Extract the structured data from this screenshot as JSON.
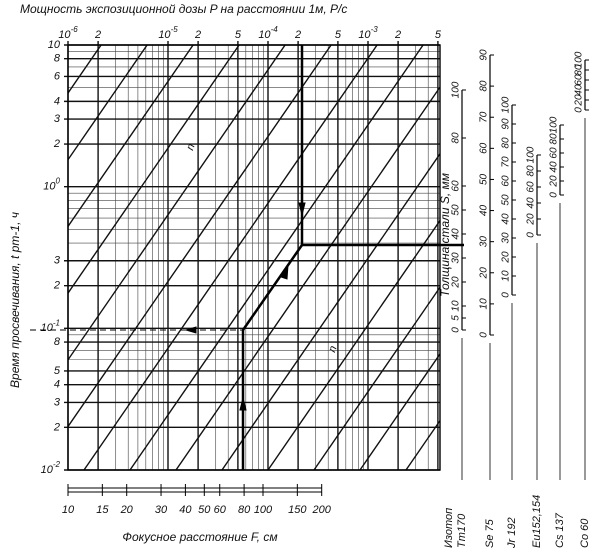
{
  "title": "Мощность экспозиционной дозы P на расстоянии 1м, Р/с",
  "left_axis_label": "Время просвечивания, t рт-1, ч",
  "bottom_axis_label": "Фокусное расстояние F, см",
  "steel_label": "Толщина стали S, мм",
  "isotope_header": "Изотоп",
  "line_labels": [
    "n",
    "n"
  ],
  "top_ticks": [
    {
      "value": 1e-06,
      "label": "10",
      "exp": "-6"
    },
    {
      "value": 2e-06,
      "label": "2"
    },
    {
      "value": 1e-05,
      "label": "10",
      "exp": "-5"
    },
    {
      "value": 2e-05,
      "label": "2"
    },
    {
      "value": 5e-05,
      "label": "5"
    },
    {
      "value": 0.0001,
      "label": "10",
      "exp": "-4"
    },
    {
      "value": 0.0002,
      "label": "2"
    },
    {
      "value": 0.0005,
      "label": "5"
    },
    {
      "value": 0.001,
      "label": "10",
      "exp": "-3"
    },
    {
      "value": 0.002,
      "label": "2"
    },
    {
      "value": 0.005,
      "label": "5"
    }
  ],
  "left_ticks": [
    10,
    8,
    6,
    4,
    3,
    2,
    {
      "value": 1,
      "label": "10",
      "exp": "0"
    },
    {
      "value": 0.3,
      "label": "3"
    },
    {
      "value": 0.2,
      "label": "2"
    },
    {
      "value": 0.1,
      "label": "10",
      "exp": "-1"
    },
    {
      "value": 0.08,
      "label": "8"
    },
    {
      "value": 0.05,
      "label": "5"
    },
    {
      "value": 0.04,
      "label": "4"
    },
    {
      "value": 0.03,
      "label": "3"
    },
    {
      "value": 0.02,
      "label": "2"
    },
    {
      "value": 0.01,
      "label": "10",
      "exp": "-2"
    }
  ],
  "bottom_ticks": [
    10,
    15,
    20,
    30,
    40,
    50,
    60,
    80,
    100,
    150,
    200
  ],
  "steel_scales": [
    {
      "isotope": "Tm170",
      "ticks": [
        0,
        5,
        10,
        20,
        30,
        40,
        50,
        60,
        80,
        100
      ]
    },
    {
      "isotope": "Se 75",
      "ticks": [
        0,
        10,
        20,
        30,
        40,
        50,
        60,
        70,
        80,
        90
      ]
    },
    {
      "isotope": "Jr 192",
      "ticks": [
        0,
        10,
        20,
        30,
        40,
        50,
        60,
        70,
        80,
        90,
        100
      ]
    },
    {
      "isotope": "Eu152,154",
      "ticks": [
        0,
        20,
        40,
        60,
        80,
        100
      ]
    },
    {
      "isotope": "Cs 137",
      "ticks": [
        0,
        20,
        40,
        60,
        80,
        100
      ]
    },
    {
      "isotope": "Co 60",
      "ticks": [
        0,
        20,
        40,
        60,
        80,
        100
      ]
    }
  ]
}
